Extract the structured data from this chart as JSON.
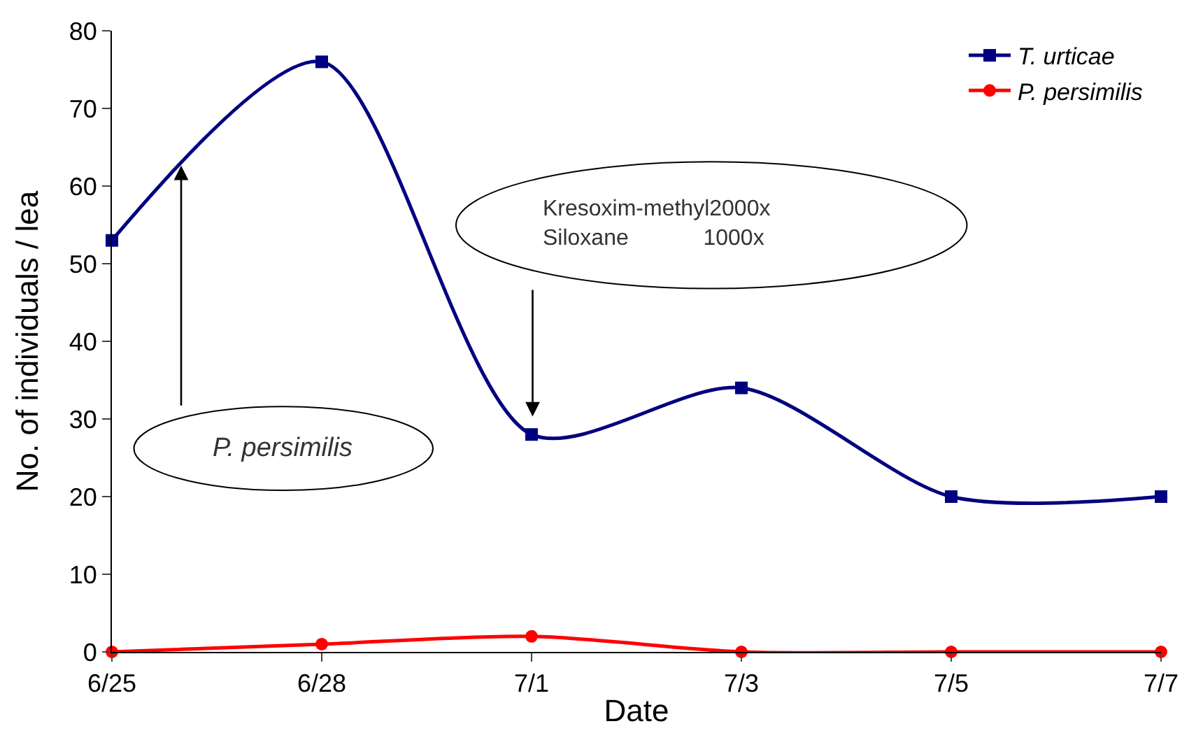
{
  "chart_data": {
    "type": "line",
    "xlabel": "Date",
    "ylabel": "No. of individuals / lea",
    "categories": [
      "6/25",
      "6/28",
      "7/1",
      "7/3",
      "7/5",
      "7/7"
    ],
    "series": [
      {
        "name": "T. urticae",
        "color": "#000080",
        "marker": "square",
        "values": [
          53,
          76,
          28,
          34,
          20,
          20
        ]
      },
      {
        "name": "P. persimilis",
        "color": "#ff0000",
        "marker": "circle",
        "values": [
          0,
          1,
          2,
          0,
          0,
          0
        ]
      }
    ],
    "ylim": [
      0,
      80
    ],
    "yticks": [
      0,
      10,
      20,
      30,
      40,
      50,
      60,
      70,
      80
    ],
    "legend": "top right",
    "line_style": "solid",
    "annotations": [
      "P. persimilis",
      "Kresoxim-methyl2000x\nSiloxane            1000x"
    ]
  }
}
